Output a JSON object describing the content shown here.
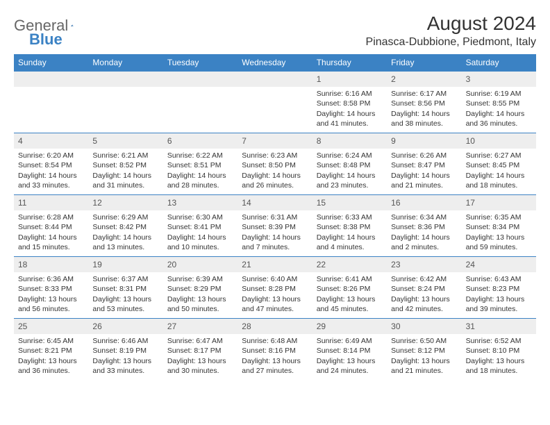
{
  "brand": {
    "part1": "General",
    "part2": "Blue"
  },
  "title": "August 2024",
  "location": "Pinasca-Dubbione, Piedmont, Italy",
  "colors": {
    "header_bg": "#3b82c4",
    "header_text": "#ffffff",
    "daynum_bg": "#eeeeee",
    "body_text": "#333333",
    "border": "#3b82c4"
  },
  "weekdays": [
    "Sunday",
    "Monday",
    "Tuesday",
    "Wednesday",
    "Thursday",
    "Friday",
    "Saturday"
  ],
  "weeks": [
    [
      null,
      null,
      null,
      null,
      {
        "n": "1",
        "sunrise": "Sunrise: 6:16 AM",
        "sunset": "Sunset: 8:58 PM",
        "day": "Daylight: 14 hours and 41 minutes."
      },
      {
        "n": "2",
        "sunrise": "Sunrise: 6:17 AM",
        "sunset": "Sunset: 8:56 PM",
        "day": "Daylight: 14 hours and 38 minutes."
      },
      {
        "n": "3",
        "sunrise": "Sunrise: 6:19 AM",
        "sunset": "Sunset: 8:55 PM",
        "day": "Daylight: 14 hours and 36 minutes."
      }
    ],
    [
      {
        "n": "4",
        "sunrise": "Sunrise: 6:20 AM",
        "sunset": "Sunset: 8:54 PM",
        "day": "Daylight: 14 hours and 33 minutes."
      },
      {
        "n": "5",
        "sunrise": "Sunrise: 6:21 AM",
        "sunset": "Sunset: 8:52 PM",
        "day": "Daylight: 14 hours and 31 minutes."
      },
      {
        "n": "6",
        "sunrise": "Sunrise: 6:22 AM",
        "sunset": "Sunset: 8:51 PM",
        "day": "Daylight: 14 hours and 28 minutes."
      },
      {
        "n": "7",
        "sunrise": "Sunrise: 6:23 AM",
        "sunset": "Sunset: 8:50 PM",
        "day": "Daylight: 14 hours and 26 minutes."
      },
      {
        "n": "8",
        "sunrise": "Sunrise: 6:24 AM",
        "sunset": "Sunset: 8:48 PM",
        "day": "Daylight: 14 hours and 23 minutes."
      },
      {
        "n": "9",
        "sunrise": "Sunrise: 6:26 AM",
        "sunset": "Sunset: 8:47 PM",
        "day": "Daylight: 14 hours and 21 minutes."
      },
      {
        "n": "10",
        "sunrise": "Sunrise: 6:27 AM",
        "sunset": "Sunset: 8:45 PM",
        "day": "Daylight: 14 hours and 18 minutes."
      }
    ],
    [
      {
        "n": "11",
        "sunrise": "Sunrise: 6:28 AM",
        "sunset": "Sunset: 8:44 PM",
        "day": "Daylight: 14 hours and 15 minutes."
      },
      {
        "n": "12",
        "sunrise": "Sunrise: 6:29 AM",
        "sunset": "Sunset: 8:42 PM",
        "day": "Daylight: 14 hours and 13 minutes."
      },
      {
        "n": "13",
        "sunrise": "Sunrise: 6:30 AM",
        "sunset": "Sunset: 8:41 PM",
        "day": "Daylight: 14 hours and 10 minutes."
      },
      {
        "n": "14",
        "sunrise": "Sunrise: 6:31 AM",
        "sunset": "Sunset: 8:39 PM",
        "day": "Daylight: 14 hours and 7 minutes."
      },
      {
        "n": "15",
        "sunrise": "Sunrise: 6:33 AM",
        "sunset": "Sunset: 8:38 PM",
        "day": "Daylight: 14 hours and 4 minutes."
      },
      {
        "n": "16",
        "sunrise": "Sunrise: 6:34 AM",
        "sunset": "Sunset: 8:36 PM",
        "day": "Daylight: 14 hours and 2 minutes."
      },
      {
        "n": "17",
        "sunrise": "Sunrise: 6:35 AM",
        "sunset": "Sunset: 8:34 PM",
        "day": "Daylight: 13 hours and 59 minutes."
      }
    ],
    [
      {
        "n": "18",
        "sunrise": "Sunrise: 6:36 AM",
        "sunset": "Sunset: 8:33 PM",
        "day": "Daylight: 13 hours and 56 minutes."
      },
      {
        "n": "19",
        "sunrise": "Sunrise: 6:37 AM",
        "sunset": "Sunset: 8:31 PM",
        "day": "Daylight: 13 hours and 53 minutes."
      },
      {
        "n": "20",
        "sunrise": "Sunrise: 6:39 AM",
        "sunset": "Sunset: 8:29 PM",
        "day": "Daylight: 13 hours and 50 minutes."
      },
      {
        "n": "21",
        "sunrise": "Sunrise: 6:40 AM",
        "sunset": "Sunset: 8:28 PM",
        "day": "Daylight: 13 hours and 47 minutes."
      },
      {
        "n": "22",
        "sunrise": "Sunrise: 6:41 AM",
        "sunset": "Sunset: 8:26 PM",
        "day": "Daylight: 13 hours and 45 minutes."
      },
      {
        "n": "23",
        "sunrise": "Sunrise: 6:42 AM",
        "sunset": "Sunset: 8:24 PM",
        "day": "Daylight: 13 hours and 42 minutes."
      },
      {
        "n": "24",
        "sunrise": "Sunrise: 6:43 AM",
        "sunset": "Sunset: 8:23 PM",
        "day": "Daylight: 13 hours and 39 minutes."
      }
    ],
    [
      {
        "n": "25",
        "sunrise": "Sunrise: 6:45 AM",
        "sunset": "Sunset: 8:21 PM",
        "day": "Daylight: 13 hours and 36 minutes."
      },
      {
        "n": "26",
        "sunrise": "Sunrise: 6:46 AM",
        "sunset": "Sunset: 8:19 PM",
        "day": "Daylight: 13 hours and 33 minutes."
      },
      {
        "n": "27",
        "sunrise": "Sunrise: 6:47 AM",
        "sunset": "Sunset: 8:17 PM",
        "day": "Daylight: 13 hours and 30 minutes."
      },
      {
        "n": "28",
        "sunrise": "Sunrise: 6:48 AM",
        "sunset": "Sunset: 8:16 PM",
        "day": "Daylight: 13 hours and 27 minutes."
      },
      {
        "n": "29",
        "sunrise": "Sunrise: 6:49 AM",
        "sunset": "Sunset: 8:14 PM",
        "day": "Daylight: 13 hours and 24 minutes."
      },
      {
        "n": "30",
        "sunrise": "Sunrise: 6:50 AM",
        "sunset": "Sunset: 8:12 PM",
        "day": "Daylight: 13 hours and 21 minutes."
      },
      {
        "n": "31",
        "sunrise": "Sunrise: 6:52 AM",
        "sunset": "Sunset: 8:10 PM",
        "day": "Daylight: 13 hours and 18 minutes."
      }
    ]
  ]
}
